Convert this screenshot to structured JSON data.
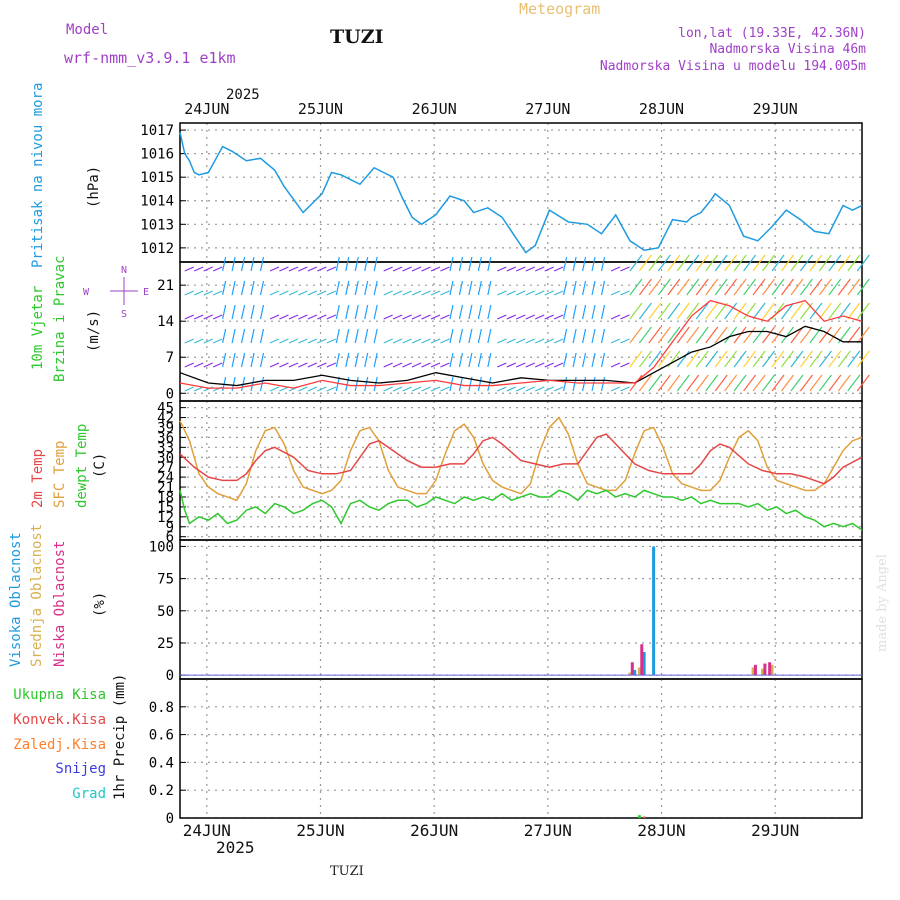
{
  "header": {
    "model_label": "Model",
    "model_name": "wrf-nmm_v3.9.1 e1km",
    "station": "TUZI",
    "title": "Meteogram",
    "coords": "lon,lat (19.33E, 42.36N)",
    "altitude": "Nadmorska Visina 46m",
    "model_altitude": "Nadmorska Visina u modelu 194.005m",
    "year": "2025",
    "footer_station": "TUZI",
    "credit": "made by Angel"
  },
  "colors": {
    "pressure": "#1e9be0",
    "temp2m": "#e64646",
    "sfc_temp": "#e0a03c",
    "dewpt": "#2ec82e",
    "cloud_high": "#1e9be0",
    "cloud_mid": "#d8b050",
    "cloud_low": "#d8308a",
    "wind_speed": "#000000",
    "gust": "#ff3c3c",
    "precip_total": "#2ec82e",
    "precip_conv": "#e64646",
    "precip_frz": "#ff7f2a",
    "snow": "#3c3cdc",
    "hail": "#1ec8c8",
    "header_purple": "#a040c8",
    "meteogram_title": "#e8c070"
  },
  "chart_data": [
    {
      "type": "line",
      "panel": "pressure",
      "ylabel_main": "Pritisak na nivou mora",
      "ylabel_unit": "(hPa)",
      "ylim": [
        1011.4,
        1017.3
      ],
      "yticks": [
        1012,
        1013,
        1014,
        1015,
        1016,
        1017
      ],
      "grid": true,
      "x_day_labels": [
        "24JUN",
        "25JUN",
        "26JUN",
        "27JUN",
        "28JUN",
        "29JUN"
      ],
      "x_hours_range": [
        0,
        144
      ],
      "series": [
        {
          "key": "pressure",
          "hours": [
            0,
            1,
            2,
            3,
            4,
            6,
            9,
            11,
            14,
            17,
            20,
            22,
            26,
            30,
            32,
            34,
            36,
            38,
            41,
            45,
            47,
            49,
            51,
            54,
            57,
            60,
            62,
            65,
            68,
            71,
            73,
            75,
            78,
            82,
            86,
            89,
            92,
            95,
            98,
            101,
            104,
            107,
            108,
            110,
            112,
            113,
            116,
            119,
            122,
            125,
            128,
            131,
            134,
            137,
            140,
            142,
            144
          ],
          "values": [
            1016.9,
            1016.0,
            1015.7,
            1015.2,
            1015.1,
            1015.2,
            1016.3,
            1016.1,
            1015.7,
            1015.8,
            1015.3,
            1014.6,
            1013.5,
            1014.3,
            1015.2,
            1015.1,
            1014.9,
            1014.7,
            1015.4,
            1015.0,
            1014.1,
            1013.3,
            1013.0,
            1013.4,
            1014.2,
            1014.0,
            1013.5,
            1013.7,
            1013.3,
            1012.4,
            1011.8,
            1012.1,
            1013.6,
            1013.1,
            1013.0,
            1012.6,
            1013.4,
            1012.3,
            1011.9,
            1012.0,
            1013.2,
            1013.1,
            1013.3,
            1013.5,
            1014.0,
            1014.3,
            1013.8,
            1012.5,
            1012.3,
            1012.9,
            1013.6,
            1013.2,
            1012.7,
            1012.6,
            1013.8,
            1013.6,
            1013.8
          ]
        }
      ]
    },
    {
      "type": "line",
      "panel": "wind",
      "ylabel_main": "10m Vjetar",
      "ylabel_sub": "Brzina i Pravac",
      "ylabel_unit": "(m/s)",
      "compass": [
        "N",
        "E",
        "S",
        "W"
      ],
      "ylim": [
        -1.5,
        25.5
      ],
      "yticks": [
        0,
        7,
        14,
        21
      ],
      "grid": true,
      "series": [
        {
          "name": "speed",
          "hours": [
            0,
            6,
            12,
            18,
            24,
            30,
            36,
            42,
            48,
            54,
            60,
            66,
            72,
            78,
            84,
            90,
            96,
            100,
            104,
            108,
            112,
            116,
            120,
            124,
            128,
            132,
            136,
            140,
            144
          ],
          "values": [
            4,
            2,
            1.5,
            2.5,
            2.5,
            3.5,
            2.5,
            2,
            2.5,
            4,
            3,
            2,
            3,
            2.5,
            2.5,
            2.5,
            2,
            4,
            6,
            8,
            9,
            11,
            12,
            12,
            11,
            13,
            12,
            10,
            10
          ]
        },
        {
          "name": "gust",
          "hours": [
            0,
            6,
            12,
            18,
            24,
            30,
            36,
            42,
            48,
            54,
            60,
            66,
            72,
            78,
            84,
            90,
            96,
            100,
            104,
            108,
            112,
            116,
            120,
            124,
            128,
            132,
            136,
            140,
            144
          ],
          "values": [
            2,
            1,
            1,
            2,
            1,
            2.5,
            1.5,
            1.5,
            2,
            2.5,
            1.5,
            1.5,
            2,
            2.5,
            2,
            2,
            2,
            5,
            10,
            15,
            18,
            17,
            15,
            14,
            17,
            18,
            14,
            15,
            14
          ]
        }
      ]
    },
    {
      "type": "line",
      "panel": "temperature",
      "ylabel_main": "2m Temp",
      "ylabel_sub": "SFC Temp",
      "ylabel_sub2": "dewpt Temp",
      "ylabel_unit": "(C)",
      "ylim": [
        5,
        47
      ],
      "yticks": [
        6,
        9,
        12,
        15,
        18,
        21,
        24,
        27,
        30,
        33,
        36,
        39,
        42,
        45
      ],
      "grid": true,
      "series": [
        {
          "key": "temp2m",
          "hours": [
            0,
            3,
            6,
            9,
            12,
            14,
            16,
            18,
            20,
            24,
            27,
            30,
            33,
            36,
            38,
            40,
            42,
            44,
            48,
            51,
            54,
            57,
            60,
            62,
            64,
            66,
            68,
            72,
            75,
            78,
            81,
            84,
            86,
            88,
            90,
            92,
            96,
            99,
            102,
            105,
            108,
            110,
            112,
            114,
            116,
            120,
            123,
            126,
            129,
            132,
            134,
            136,
            138,
            140,
            144
          ],
          "values": [
            31,
            27,
            24,
            23,
            23,
            25,
            29,
            32,
            33,
            30,
            26,
            25,
            25,
            26,
            30,
            34,
            35,
            33,
            29,
            27,
            27,
            28,
            28,
            31,
            35,
            36,
            34,
            29,
            28,
            27,
            28,
            28,
            32,
            36,
            37,
            34,
            28,
            26,
            25,
            25,
            25,
            28,
            32,
            34,
            33,
            28,
            26,
            25,
            25,
            24,
            23,
            22,
            24,
            27,
            30
          ]
        },
        {
          "key": "sfc_temp",
          "hours": [
            0,
            2,
            4,
            6,
            8,
            10,
            12,
            14,
            16,
            18,
            20,
            22,
            24,
            26,
            28,
            30,
            32,
            34,
            36,
            38,
            40,
            42,
            44,
            46,
            48,
            50,
            52,
            54,
            56,
            58,
            60,
            62,
            64,
            66,
            68,
            70,
            72,
            74,
            76,
            78,
            80,
            82,
            84,
            86,
            88,
            90,
            92,
            94,
            96,
            98,
            100,
            102,
            104,
            106,
            108,
            110,
            112,
            114,
            116,
            118,
            120,
            122,
            124,
            126,
            128,
            130,
            132,
            134,
            136,
            138,
            140,
            142,
            144
          ],
          "values": [
            41,
            35,
            25,
            21,
            19,
            18,
            17,
            22,
            32,
            38,
            39,
            34,
            26,
            21,
            20,
            19,
            20,
            23,
            32,
            38,
            39,
            35,
            26,
            21,
            20,
            19,
            19,
            23,
            31,
            38,
            40,
            36,
            28,
            23,
            21,
            20,
            19,
            22,
            32,
            39,
            42,
            37,
            28,
            22,
            21,
            20,
            20,
            23,
            31,
            38,
            39,
            33,
            25,
            22,
            21,
            20,
            20,
            23,
            30,
            36,
            38,
            35,
            27,
            23,
            22,
            21,
            20,
            20,
            22,
            27,
            32,
            35,
            36
          ]
        },
        {
          "key": "dewpt",
          "hours": [
            0,
            1,
            2,
            4,
            6,
            8,
            10,
            12,
            14,
            16,
            18,
            20,
            22,
            24,
            26,
            28,
            30,
            32,
            34,
            36,
            38,
            40,
            42,
            44,
            46,
            48,
            50,
            52,
            54,
            56,
            58,
            60,
            62,
            64,
            66,
            68,
            70,
            72,
            74,
            76,
            78,
            80,
            82,
            84,
            86,
            88,
            90,
            92,
            94,
            96,
            98,
            100,
            102,
            104,
            106,
            108,
            110,
            112,
            114,
            116,
            118,
            120,
            122,
            124,
            126,
            128,
            130,
            132,
            134,
            136,
            138,
            140,
            142,
            144
          ],
          "values": [
            20,
            14,
            10,
            12,
            11,
            13,
            10,
            11,
            14,
            15,
            13,
            16,
            15,
            13,
            14,
            16,
            17,
            15,
            10,
            16,
            17,
            15,
            14,
            16,
            17,
            17,
            15,
            16,
            18,
            17,
            16,
            18,
            17,
            18,
            17,
            19,
            17,
            18,
            19,
            18,
            18,
            20,
            19,
            17,
            20,
            19,
            20,
            18,
            19,
            18,
            20,
            19,
            18,
            18,
            17,
            18,
            16,
            17,
            16,
            16,
            16,
            15,
            16,
            14,
            15,
            13,
            14,
            12,
            11,
            9,
            10,
            9,
            10,
            8
          ]
        }
      ]
    },
    {
      "type": "bar",
      "panel": "clouds",
      "ylabel_main": "Visoka Oblacnost",
      "ylabel_sub": "Srednja Oblacnost",
      "ylabel_sub2": "Niska Oblacnost",
      "ylabel_unit": "(%)",
      "ylim": [
        -3,
        105
      ],
      "yticks": [
        0,
        25,
        50,
        75,
        100
      ],
      "grid": true,
      "series": [
        {
          "key": "cloud_high",
          "hours": [
            96,
            98,
            100
          ],
          "values": [
            4,
            18,
            100
          ]
        },
        {
          "key": "cloud_mid",
          "hours": [
            95,
            97,
            121,
            123,
            125
          ],
          "values": [
            2,
            6,
            6,
            5,
            8
          ]
        },
        {
          "key": "cloud_low",
          "hours": [
            95.5,
            97.5,
            121.5,
            123.5,
            124.5
          ],
          "values": [
            10,
            24,
            8,
            9,
            10
          ]
        }
      ]
    },
    {
      "type": "bar",
      "panel": "precip",
      "ylabel_labels": [
        "Ukupna Kisa",
        "Konvek.Kisa",
        "Zaledj.Kisa",
        "Snijeg",
        "Grad"
      ],
      "ylabel_unit": "1hr Precip (mm)",
      "ylim": [
        0,
        1.0
      ],
      "yticks": [
        0,
        0.2,
        0.4,
        0.6,
        0.8
      ],
      "grid": true,
      "series": [
        {
          "key": "precip_total",
          "hours": [
            97
          ],
          "values": [
            0.02
          ]
        },
        {
          "key": "precip_conv",
          "hours": [
            98
          ],
          "values": [
            0.01
          ]
        }
      ]
    }
  ]
}
